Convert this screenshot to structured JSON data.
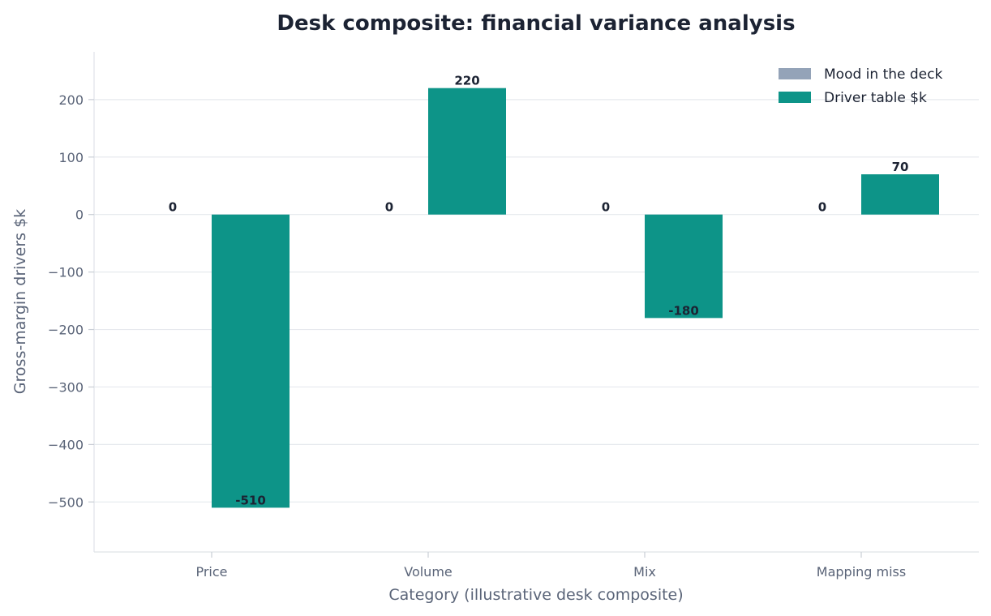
{
  "chart_data": {
    "type": "bar",
    "title": "Desk composite: financial variance analysis",
    "xlabel": "Category (illustrative desk composite)",
    "ylabel": "Gross-margin drivers $k",
    "categories": [
      "Price",
      "Volume",
      "Mix",
      "Mapping miss"
    ],
    "series": [
      {
        "name": "Mood in the deck",
        "values": [
          0,
          0,
          0,
          0
        ],
        "color": "#94a3b8"
      },
      {
        "name": "Driver table $k",
        "values": [
          -510,
          220,
          -180,
          70
        ],
        "color": "#0d9488"
      }
    ],
    "ylim": [
      -587,
      283
    ],
    "yticks": [
      200,
      100,
      0,
      -100,
      -200,
      -300,
      -400,
      -500
    ],
    "ytick_labels": [
      "200",
      "100",
      "0",
      "−100",
      "−200",
      "−300",
      "−400",
      "−500"
    ],
    "grid": true,
    "legend_position": "top-right"
  }
}
